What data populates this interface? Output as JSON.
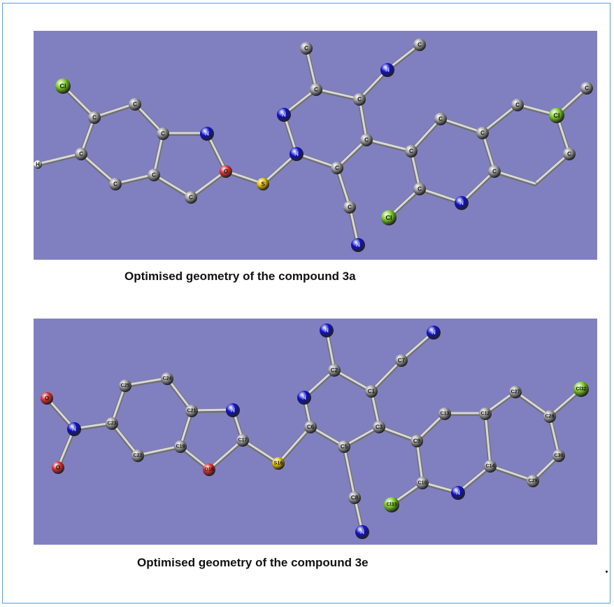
{
  "colors": {
    "background": "#8080c0",
    "carbon": "#a0a0a0",
    "nitrogen": "#1010c8",
    "oxygen": "#e03030",
    "sulfur": "#e8c000",
    "chlorine": "#7cd020",
    "hydrogen": "#f0f0f0",
    "bond": "#d8d8d8"
  },
  "figures": [
    {
      "id": "3a",
      "caption": "Optimised geometry of the compound 3a",
      "atoms": [
        {
          "label": "Cl",
          "element": "Cl"
        },
        {
          "label": "C",
          "element": "C"
        },
        {
          "label": "C",
          "element": "C"
        },
        {
          "label": "C",
          "element": "C"
        },
        {
          "label": "N",
          "element": "N"
        },
        {
          "label": "H",
          "element": "H"
        },
        {
          "label": "C",
          "element": "C"
        },
        {
          "label": "C",
          "element": "C"
        },
        {
          "label": "C",
          "element": "C"
        },
        {
          "label": "C",
          "element": "C"
        },
        {
          "label": "O",
          "element": "O"
        },
        {
          "label": "S",
          "element": "S"
        },
        {
          "label": "N",
          "element": "N"
        },
        {
          "label": "N",
          "element": "N"
        },
        {
          "label": "C",
          "element": "C"
        },
        {
          "label": "C",
          "element": "C"
        },
        {
          "label": "C",
          "element": "C"
        },
        {
          "label": "N",
          "element": "N"
        },
        {
          "label": "C",
          "element": "C"
        },
        {
          "label": "C",
          "element": "C"
        },
        {
          "label": "C",
          "element": "C"
        },
        {
          "label": "C",
          "element": "C"
        },
        {
          "label": "N",
          "element": "N"
        },
        {
          "label": "C",
          "element": "C"
        },
        {
          "label": "C",
          "element": "C"
        },
        {
          "label": "C",
          "element": "C"
        },
        {
          "label": "Cl",
          "element": "Cl"
        },
        {
          "label": "N",
          "element": "N"
        },
        {
          "label": "C",
          "element": "C"
        },
        {
          "label": "C",
          "element": "C"
        },
        {
          "label": "C",
          "element": "C"
        },
        {
          "label": "Cl",
          "element": "Cl"
        },
        {
          "label": "C",
          "element": "C"
        },
        {
          "label": "C",
          "element": "C"
        }
      ]
    },
    {
      "id": "3e",
      "caption": "Optimised geometry of the compound 3e",
      "atoms": [
        {
          "label": "O",
          "element": "O"
        },
        {
          "label": "N",
          "element": "N"
        },
        {
          "label": "O",
          "element": "O"
        },
        {
          "label": "C23",
          "element": "C"
        },
        {
          "label": "C25",
          "element": "C"
        },
        {
          "label": "C24",
          "element": "C"
        },
        {
          "label": "C22",
          "element": "C"
        },
        {
          "label": "C21",
          "element": "C"
        },
        {
          "label": "C19",
          "element": "C"
        },
        {
          "label": "N",
          "element": "N"
        },
        {
          "label": "C17",
          "element": "C"
        },
        {
          "label": "O18",
          "element": "O"
        },
        {
          "label": "S16",
          "element": "S"
        },
        {
          "label": "N",
          "element": "N"
        },
        {
          "label": "N",
          "element": "N"
        },
        {
          "label": "C2",
          "element": "C"
        },
        {
          "label": "C7",
          "element": "C"
        },
        {
          "label": "N",
          "element": "N"
        },
        {
          "label": "C6",
          "element": "C"
        },
        {
          "label": "C1",
          "element": "C"
        },
        {
          "label": "C3",
          "element": "C"
        },
        {
          "label": "C5",
          "element": "C"
        },
        {
          "label": "C8",
          "element": "C"
        },
        {
          "label": "N",
          "element": "N"
        },
        {
          "label": "C9",
          "element": "C"
        },
        {
          "label": "C13",
          "element": "C"
        },
        {
          "label": "C10",
          "element": "C"
        },
        {
          "label": "Cl33",
          "element": "Cl"
        },
        {
          "label": "N",
          "element": "N"
        },
        {
          "label": "C12",
          "element": "C"
        },
        {
          "label": "C14",
          "element": "C"
        },
        {
          "label": "C27",
          "element": "C"
        },
        {
          "label": "C28",
          "element": "C"
        },
        {
          "label": "Cl32",
          "element": "Cl"
        },
        {
          "label": "C30",
          "element": "C"
        },
        {
          "label": "C29",
          "element": "C"
        }
      ]
    }
  ]
}
